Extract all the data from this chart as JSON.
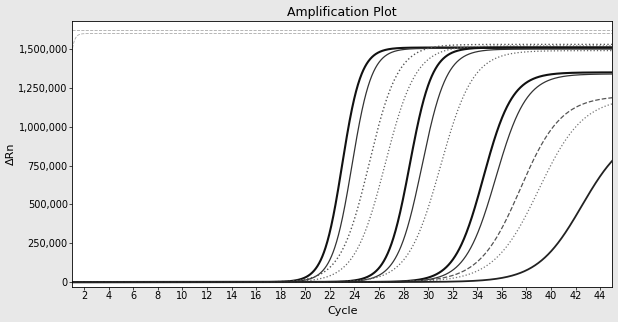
{
  "title": "Amplification Plot",
  "xlabel": "Cycle",
  "ylabel": "ΔRn",
  "xlim": [
    1,
    45
  ],
  "ylim": [
    -30000,
    1680000
  ],
  "xticks": [
    2,
    4,
    6,
    8,
    10,
    12,
    14,
    16,
    18,
    20,
    22,
    24,
    26,
    28,
    30,
    32,
    34,
    36,
    38,
    40,
    42,
    44
  ],
  "yticks": [
    0,
    250000,
    500000,
    750000,
    1000000,
    1250000,
    1500000
  ],
  "ytick_labels": [
    "0",
    "250,000",
    "500,000",
    "750,000",
    "1,000,000",
    "1,250,000",
    "1,500,000"
  ],
  "curves": [
    {
      "L": 1510000,
      "k": 1.3,
      "x0": 23.0,
      "style": "solid",
      "color": "#111111",
      "lw": 1.5
    },
    {
      "L": 1505000,
      "k": 1.25,
      "x0": 23.8,
      "style": "solid",
      "color": "#333333",
      "lw": 0.9
    },
    {
      "L": 1530000,
      "k": 0.85,
      "x0": 25.2,
      "style": "dotted",
      "color": "#555555",
      "lw": 1.0
    },
    {
      "L": 1520000,
      "k": 0.8,
      "x0": 26.5,
      "style": "dotted",
      "color": "#666666",
      "lw": 0.9
    },
    {
      "L": 1510000,
      "k": 1.1,
      "x0": 28.5,
      "style": "solid",
      "color": "#111111",
      "lw": 1.5
    },
    {
      "L": 1500000,
      "k": 1.0,
      "x0": 29.5,
      "style": "solid",
      "color": "#333333",
      "lw": 0.9
    },
    {
      "L": 1490000,
      "k": 0.75,
      "x0": 31.0,
      "style": "dotted",
      "color": "#666666",
      "lw": 0.9
    },
    {
      "L": 1350000,
      "k": 0.85,
      "x0": 34.5,
      "style": "solid",
      "color": "#111111",
      "lw": 1.5
    },
    {
      "L": 1340000,
      "k": 0.8,
      "x0": 35.5,
      "style": "solid",
      "color": "#333333",
      "lw": 0.9
    },
    {
      "L": 1200000,
      "k": 0.6,
      "x0": 37.5,
      "style": "dashed",
      "color": "#555555",
      "lw": 0.9
    },
    {
      "L": 1190000,
      "k": 0.55,
      "x0": 39.0,
      "style": "dotted",
      "color": "#777777",
      "lw": 0.9
    },
    {
      "L": 980000,
      "k": 0.55,
      "x0": 42.5,
      "style": "solid",
      "color": "#222222",
      "lw": 1.3
    },
    {
      "L": 1600000,
      "k": 5.0,
      "x0": 0.5,
      "style": "dashed",
      "color": "#aaaaaa",
      "lw": 0.6
    }
  ],
  "top_line_y": 1620000,
  "top_line_color": "#aaaaaa",
  "top_line_lw": 0.6,
  "top_line_style": "--",
  "background_color": "#e8e8e8",
  "plot_bg": "#ffffff",
  "title_fontsize": 9,
  "axis_fontsize": 8,
  "tick_fontsize": 7
}
